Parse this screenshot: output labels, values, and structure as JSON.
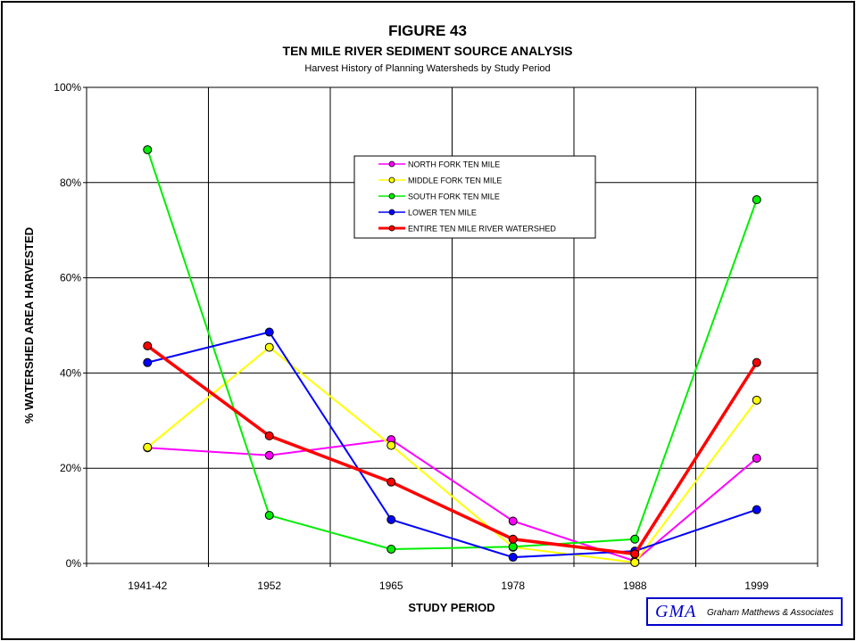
{
  "chart_data": {
    "type": "line",
    "title": "FIGURE 43",
    "subtitle": "TEN MILE RIVER SEDIMENT SOURCE ANALYSIS",
    "subtitle2": "Harvest History of Planning Watersheds by Study Period",
    "xlabel": "STUDY PERIOD",
    "ylabel": "% WATERSHED AREA HARVESTED",
    "categories": [
      "1941-42",
      "1952",
      "1965",
      "1978",
      "1988",
      "1999"
    ],
    "yticks": [
      "0%",
      "20%",
      "40%",
      "60%",
      "80%",
      "100%"
    ],
    "ylim": [
      0,
      100
    ],
    "grid": true,
    "legend_position": "upper-center",
    "series": [
      {
        "name": "NORTH FORK TEN MILE",
        "color": "#ff00ff",
        "values": [
          24.3,
          22.7,
          26.0,
          8.9,
          0.5,
          22.1
        ]
      },
      {
        "name": "MIDDLE FORK TEN MILE",
        "color": "#ffff00",
        "values": [
          24.4,
          45.4,
          24.8,
          3.4,
          0.2,
          34.3
        ]
      },
      {
        "name": "SOUTH FORK TEN MILE",
        "color": "#00ee00",
        "values": [
          86.9,
          10.1,
          3.0,
          3.5,
          5.1,
          76.4
        ]
      },
      {
        "name": "LOWER TEN MILE",
        "color": "#0000ff",
        "values": [
          42.2,
          48.6,
          9.2,
          1.3,
          2.6,
          11.3
        ]
      },
      {
        "name": "ENTIRE TEN MILE RIVER WATERSHED",
        "color": "#ff0000",
        "values": [
          45.7,
          26.8,
          17.1,
          5.1,
          2.0,
          42.2
        ],
        "bold": true
      }
    ]
  },
  "logo": {
    "mark": "GMA",
    "text": "Graham Matthews & Associates"
  }
}
